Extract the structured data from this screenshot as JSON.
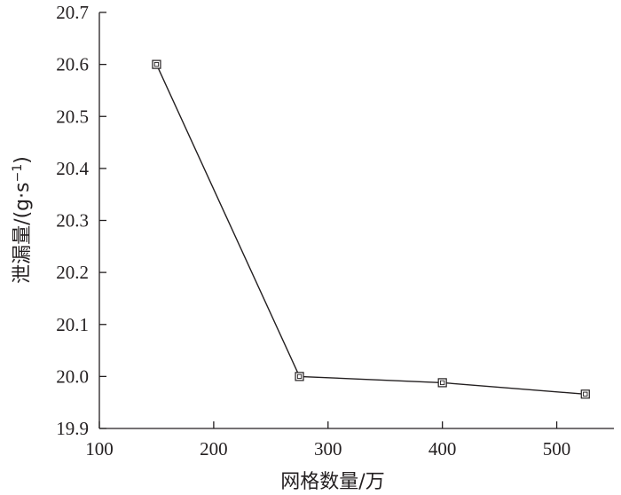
{
  "chart_data": {
    "type": "line",
    "title": "",
    "xlabel": "网格数量/万",
    "ylabel": "泄漏量/(g·s",
    "ylabel_superscript": "−1",
    "ylabel_suffix": ")",
    "xlim": [
      100,
      550
    ],
    "ylim": [
      19.9,
      20.7
    ],
    "x_ticks": [
      100,
      200,
      300,
      400,
      500
    ],
    "x_tick_labels": [
      "100",
      "200",
      "300",
      "400",
      "500"
    ],
    "y_ticks": [
      19.9,
      20.0,
      20.1,
      20.2,
      20.3,
      20.4,
      20.5,
      20.6,
      20.7
    ],
    "y_tick_labels": [
      "19.9",
      "20.0",
      "20.1",
      "20.2",
      "20.3",
      "20.4",
      "20.5",
      "20.6",
      "20.7"
    ],
    "grid": false,
    "series": [
      {
        "marker": "square",
        "x": [
          150,
          275,
          400,
          525
        ],
        "y": [
          20.6,
          20.0,
          19.988,
          19.966
        ]
      }
    ]
  }
}
